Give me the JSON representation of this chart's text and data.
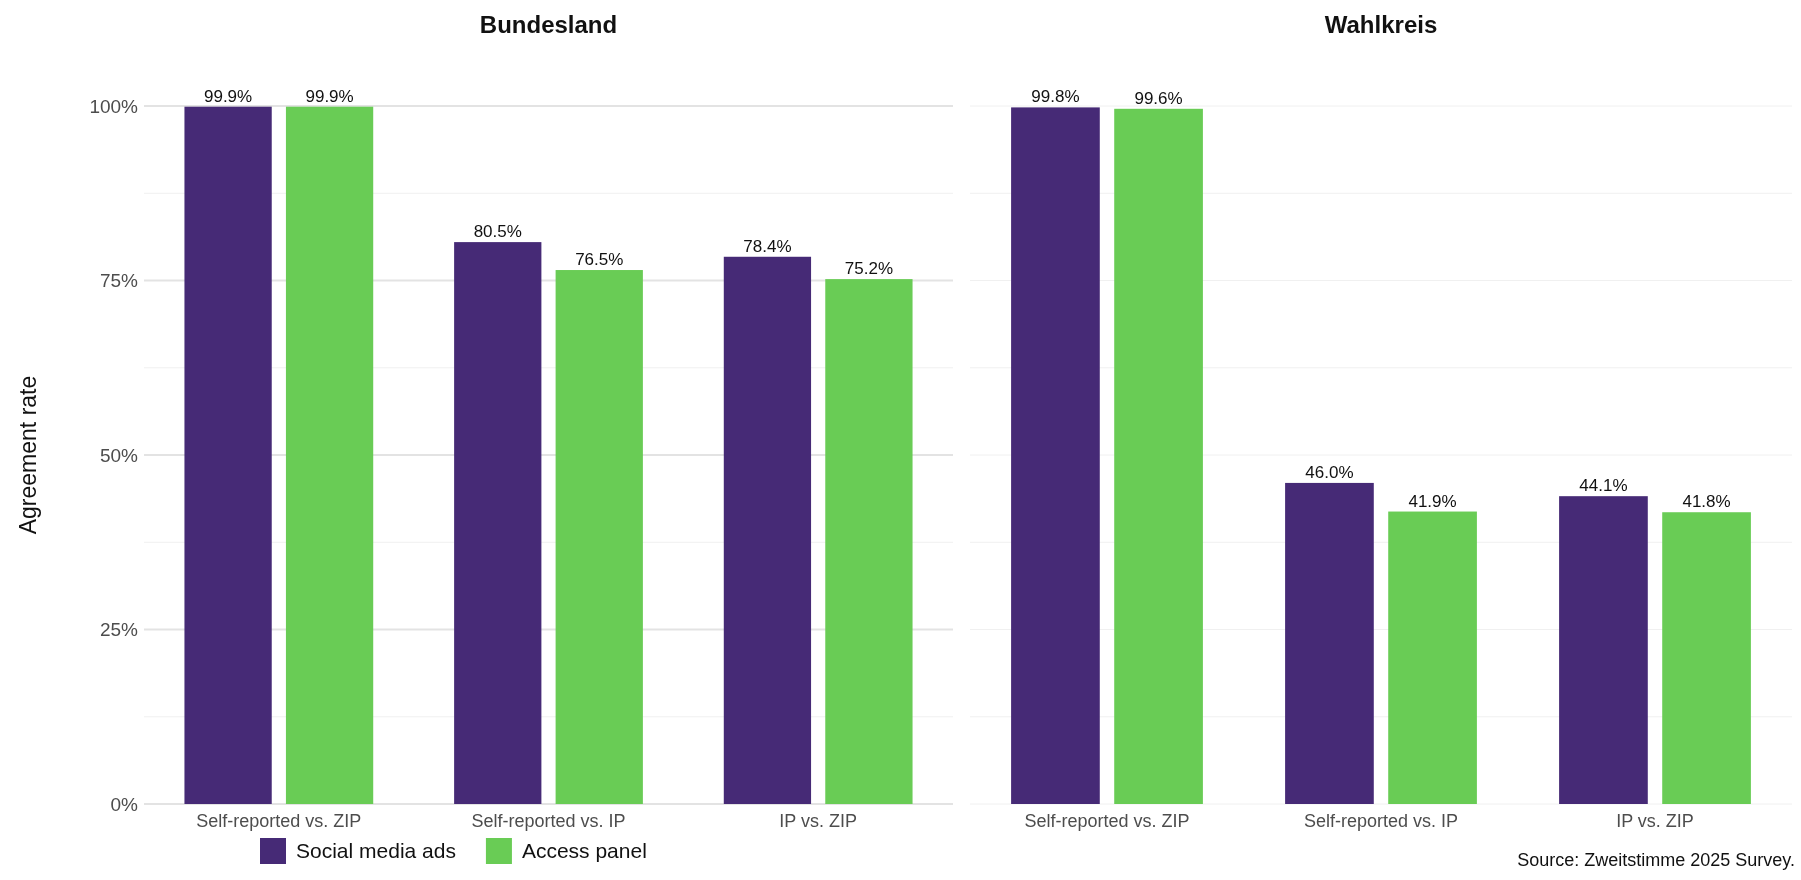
{
  "chart_data": [
    {
      "type": "bar",
      "title": "Bundesland",
      "ylabel": "Agreement rate",
      "categories": [
        "Self-reported vs. ZIP",
        "Self-reported vs. IP",
        "IP vs. ZIP"
      ],
      "series": [
        {
          "name": "Social media ads",
          "color": "#462a76",
          "values": [
            99.9,
            80.5,
            78.4
          ]
        },
        {
          "name": "Access panel",
          "color": "#69cc55",
          "values": [
            99.9,
            76.5,
            75.2
          ]
        }
      ],
      "ylim": [
        0,
        100
      ],
      "yticks": [
        {
          "value": 0,
          "label": "0%"
        },
        {
          "value": 12.5,
          "label": null
        },
        {
          "value": 25,
          "label": "25%"
        },
        {
          "value": 37.5,
          "label": null
        },
        {
          "value": 50,
          "label": "50%"
        },
        {
          "value": 62.5,
          "label": null
        },
        {
          "value": 75,
          "label": "75%"
        },
        {
          "value": 87.5,
          "label": null
        },
        {
          "value": 100,
          "label": "100%"
        }
      ],
      "value_labels": [
        [
          "99.9%",
          "80.5%",
          "78.4%"
        ],
        [
          "99.9%",
          "76.5%",
          "75.2%"
        ]
      ],
      "grid": "y",
      "legend": "bottom"
    },
    {
      "type": "bar",
      "title": "Wahlkreis",
      "categories": [
        "Self-reported vs. ZIP",
        "Self-reported vs. IP",
        "IP vs. ZIP"
      ],
      "series": [
        {
          "color": "#462a76",
          "values": [
            99.8,
            46.0,
            44.1
          ]
        },
        {
          "color": "#69cc55",
          "values": [
            99.6,
            41.9,
            41.8
          ]
        }
      ],
      "ylim": [
        0,
        100
      ],
      "yticks": [
        {
          "value": 0,
          "label": null
        },
        {
          "value": 12.5,
          "label": null
        },
        {
          "value": 25,
          "label": null
        },
        {
          "value": 37.5,
          "label": null
        },
        {
          "value": 50,
          "label": null
        },
        {
          "value": 62.5,
          "label": null
        },
        {
          "value": 75,
          "label": null
        },
        {
          "value": 87.5,
          "label": null
        },
        {
          "value": 100,
          "label": null
        }
      ],
      "value_labels": [
        [
          "99.8%",
          "46.0%",
          "44.1%"
        ],
        [
          "99.6%",
          "41.9%",
          "41.8%"
        ]
      ],
      "grid": "y",
      "tick_labels": "x",
      "annotations": [
        "Source: Zweitstimme 2025 Survey."
      ]
    }
  ]
}
